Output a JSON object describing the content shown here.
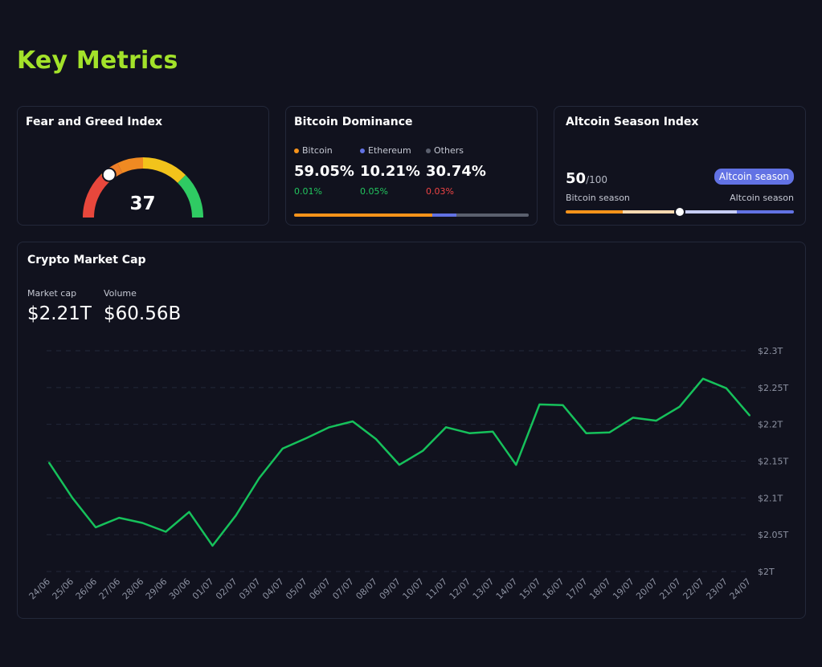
{
  "page": {
    "title": "Key Metrics"
  },
  "colors": {
    "accent": "#a3e22a",
    "background": "#11121e",
    "card_border": "#23283a",
    "bitcoin": "#f7931a",
    "ethereum": "#6272e4",
    "others": "#5b606e",
    "positive": "#22c55e",
    "negative": "#ef4444",
    "line": "#16c15b"
  },
  "fear_greed": {
    "title": "Fear and Greed Index",
    "value": "37",
    "level": 37
  },
  "dominance": {
    "title": "Bitcoin Dominance",
    "items": [
      {
        "label": "Bitcoin",
        "percent": "59.05%",
        "change": "0.01%",
        "trend": "up",
        "share": 59.05,
        "color": "#f7931a"
      },
      {
        "label": "Ethereum",
        "percent": "10.21%",
        "change": "0.05%",
        "trend": "up",
        "share": 10.21,
        "color": "#6272e4"
      },
      {
        "label": "Others",
        "percent": "30.74%",
        "change": "0.03%",
        "trend": "down",
        "share": 30.74,
        "color": "#5b606e"
      }
    ]
  },
  "altcoin": {
    "title": "Altcoin Season Index",
    "score": "50",
    "denominator": "/100",
    "badge": "Altcoin season",
    "left_label": "Bitcoin season",
    "right_label": "Altcoin season",
    "level": 50
  },
  "market_cap": {
    "title": "Crypto Market Cap",
    "cap_label": "Market cap",
    "cap_value": "$2.21T",
    "volume_label": "Volume",
    "volume_value": "$60.56B"
  },
  "chart_data": {
    "type": "line",
    "title": "",
    "xlabel": "",
    "ylabel": "",
    "ylim": [
      2.0,
      2.3
    ],
    "y_ticks": [
      2.0,
      2.05,
      2.1,
      2.15,
      2.2,
      2.25,
      2.3
    ],
    "y_tick_labels": [
      "$2T",
      "$2.05T",
      "$2.1T",
      "$2.15T",
      "$2.2T",
      "$2.25T",
      "$2.3T"
    ],
    "grid": true,
    "y_axis_position": "right",
    "categories": [
      "24/06",
      "25/06",
      "26/06",
      "27/06",
      "28/06",
      "29/06",
      "30/06",
      "01/07",
      "02/07",
      "03/07",
      "04/07",
      "05/07",
      "06/07",
      "07/07",
      "08/07",
      "09/07",
      "10/07",
      "11/07",
      "12/07",
      "13/07",
      "14/07",
      "15/07",
      "16/07",
      "17/07",
      "18/07",
      "19/07",
      "20/07",
      "21/07",
      "22/07",
      "23/07",
      "24/07"
    ],
    "series": [
      {
        "values": [
          2.148,
          2.1,
          2.06,
          2.073,
          2.066,
          2.054,
          2.081,
          2.035,
          2.076,
          2.127,
          2.167,
          2.181,
          2.196,
          2.204,
          2.18,
          2.145,
          2.164,
          2.196,
          2.188,
          2.19,
          2.145,
          2.227,
          2.226,
          2.188,
          2.189,
          2.209,
          2.205,
          2.224,
          2.262,
          2.249,
          2.212
        ]
      }
    ]
  }
}
